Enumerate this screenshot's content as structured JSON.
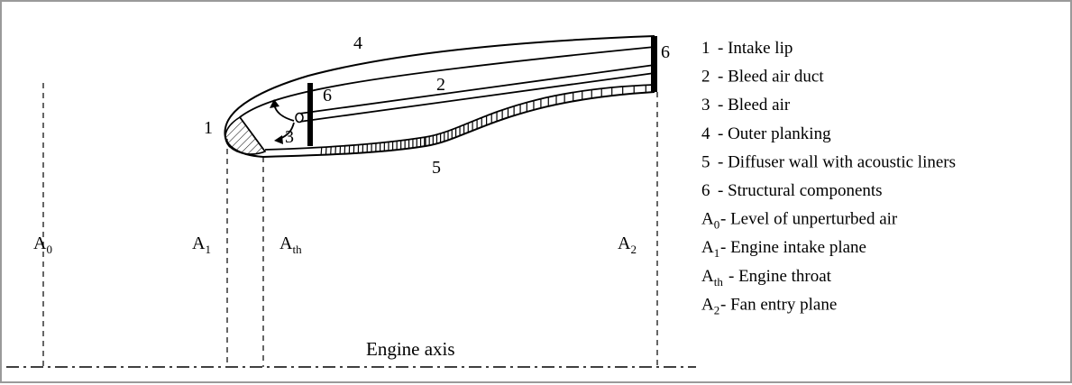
{
  "diagram": {
    "callouts": {
      "c1": "1",
      "c2": "2",
      "c3": "3",
      "c4": "4",
      "c5": "5",
      "c6a": "6",
      "c6b": "6"
    },
    "planes": [
      {
        "base": "A",
        "sub": "0"
      },
      {
        "base": "A",
        "sub": "1"
      },
      {
        "base": "A",
        "sub": "th"
      },
      {
        "base": "A",
        "sub": "2"
      }
    ],
    "axis_label": "Engine axis"
  },
  "legend": [
    {
      "key": "1",
      "sub": "",
      "text": "- Intake lip"
    },
    {
      "key": "2",
      "sub": "",
      "text": "- Bleed air duct"
    },
    {
      "key": "3",
      "sub": "",
      "text": "- Bleed air"
    },
    {
      "key": "4",
      "sub": "",
      "text": "- Outer planking"
    },
    {
      "key": "5",
      "sub": "",
      "text": "- Diffuser wall with acoustic liners"
    },
    {
      "key": "6",
      "sub": "",
      "text": "- Structural components"
    },
    {
      "key": "A",
      "sub": "0",
      "text": "- Level of unperturbed air"
    },
    {
      "key": "A",
      "sub": "1",
      "text": "- Engine intake plane"
    },
    {
      "key": "A",
      "sub": "th",
      "text": "- Engine throat"
    },
    {
      "key": "A",
      "sub": "2",
      "text": "- Fan entry plane"
    }
  ]
}
